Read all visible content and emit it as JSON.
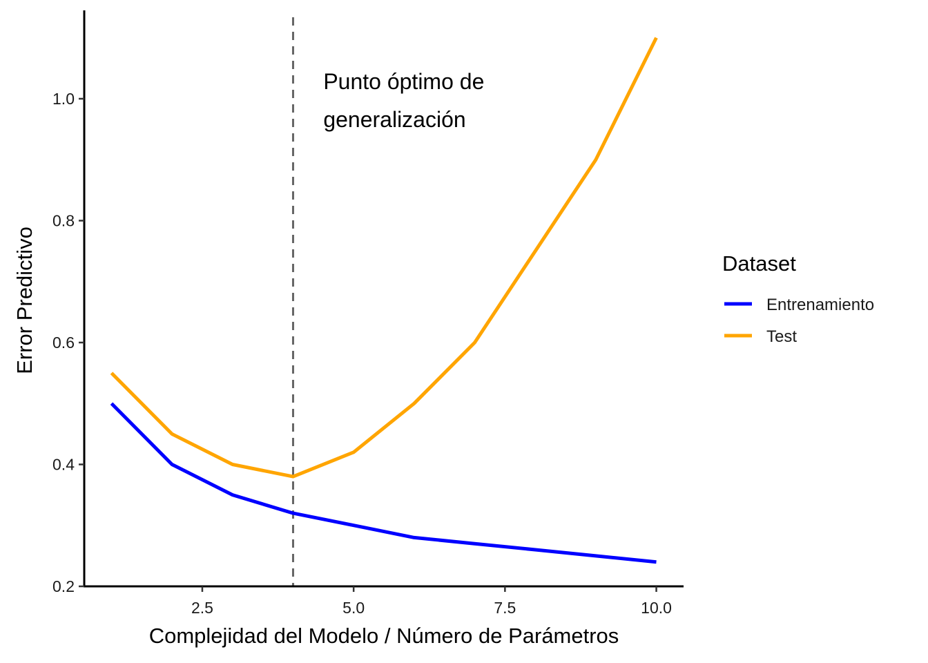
{
  "chart_data": {
    "type": "line",
    "x": [
      1,
      2,
      3,
      4,
      5,
      6,
      7,
      8,
      9,
      10
    ],
    "series": [
      {
        "name": "Entrenamiento",
        "color": "#0000ff",
        "values": [
          0.5,
          0.4,
          0.35,
          0.32,
          0.3,
          0.28,
          0.27,
          0.26,
          0.25,
          0.24
        ]
      },
      {
        "name": "Test",
        "color": "#ffa500",
        "values": [
          0.55,
          0.45,
          0.4,
          0.38,
          0.42,
          0.5,
          0.6,
          0.75,
          0.9,
          1.1
        ]
      }
    ],
    "xlabel": "Complejidad del Modelo / Número de Parámetros",
    "ylabel": "Error Predictivo",
    "xlim": [
      0.55,
      10.45
    ],
    "ylim": [
      0.2,
      1.145
    ],
    "x_ticks": [
      2.5,
      5.0,
      7.5,
      10.0
    ],
    "x_tick_labels": [
      "2.5",
      "5.0",
      "7.5",
      "10.0"
    ],
    "y_ticks": [
      0.2,
      0.4,
      0.6,
      0.8,
      1.0
    ],
    "y_tick_labels": [
      "0.2",
      "0.4",
      "0.6",
      "0.8",
      "1.0"
    ],
    "vline": {
      "x": 4,
      "color": "#666666",
      "style": "dashed"
    },
    "annotation": {
      "x": 4.5,
      "y": 1.0,
      "lines": [
        "Punto óptimo de",
        "generalización"
      ]
    },
    "legend": {
      "title": "Dataset",
      "position": "right"
    },
    "grid": false
  }
}
